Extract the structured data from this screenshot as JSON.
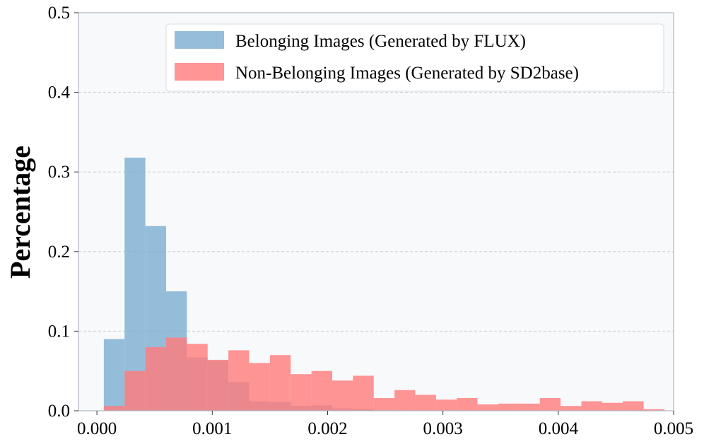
{
  "colors": {
    "plot_background": "#f7f9fb",
    "series_belonging": "#7aaed2",
    "series_nonbelonging": "#ff7a7a",
    "grid": "#c9ccd2",
    "axis": "#b0b6c0"
  },
  "chart_data": {
    "type": "bar",
    "subtype": "overlapping histogram",
    "title": "",
    "xlabel": "",
    "ylabel": "Percentage",
    "xlim": [
      -0.00016,
      0.005
    ],
    "ylim": [
      0,
      0.5
    ],
    "xticks": [
      {
        "value": 0.0,
        "label": "0.000"
      },
      {
        "value": 0.001,
        "label": "0.001"
      },
      {
        "value": 0.002,
        "label": "0.002"
      },
      {
        "value": 0.003,
        "label": "0.003"
      },
      {
        "value": 0.004,
        "label": "0.004"
      },
      {
        "value": 0.005,
        "label": "0.005"
      }
    ],
    "yticks": [
      {
        "value": 0.0,
        "label": "0.0"
      },
      {
        "value": 0.1,
        "label": "0.1"
      },
      {
        "value": 0.2,
        "label": "0.2"
      },
      {
        "value": 0.3,
        "label": "0.3"
      },
      {
        "value": 0.4,
        "label": "0.4"
      },
      {
        "value": 0.5,
        "label": "0.5"
      }
    ],
    "grid": "horizontal dashed",
    "legend_position": "top-right",
    "series": [
      {
        "name": "Belonging Images (Generated by FLUX)",
        "color": "#7aaed2",
        "bin_edges": [
          6e-05,
          0.00024,
          0.00042,
          0.0006,
          0.00078,
          0.00096,
          0.00114,
          0.00132,
          0.0015,
          0.00168,
          0.00186,
          0.00204,
          0.00222,
          0.0024
        ],
        "values": [
          0.09,
          0.318,
          0.232,
          0.15,
          0.067,
          0.063,
          0.036,
          0.012,
          0.011,
          0.006,
          0.007,
          0.003,
          0.002
        ]
      },
      {
        "name": "Non-Belonging Images (Generated by SD2base)",
        "color": "#ff7a7a",
        "bin_edges": [
          6e-05,
          0.00024,
          0.00042,
          0.0006,
          0.00078,
          0.00096,
          0.00114,
          0.00132,
          0.0015,
          0.00168,
          0.00186,
          0.00204,
          0.00222,
          0.0024,
          0.00258,
          0.00276,
          0.00294,
          0.00312,
          0.0033,
          0.00348,
          0.00366,
          0.00384,
          0.00402,
          0.0042,
          0.00438,
          0.00456,
          0.00474,
          0.00492
        ],
        "values": [
          0.006,
          0.05,
          0.08,
          0.092,
          0.084,
          0.064,
          0.076,
          0.06,
          0.07,
          0.046,
          0.05,
          0.038,
          0.044,
          0.016,
          0.026,
          0.02,
          0.014,
          0.016,
          0.008,
          0.009,
          0.009,
          0.016,
          0.006,
          0.012,
          0.01,
          0.012,
          0.002
        ]
      }
    ]
  }
}
